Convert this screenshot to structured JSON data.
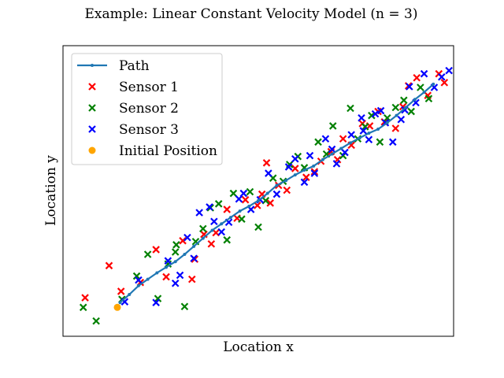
{
  "chart_data": {
    "type": "scatter",
    "title": "Example: Linear Constant Velocity Model (n = 3)",
    "xlabel": "Location x",
    "ylabel": "Location y",
    "xticks": [],
    "yticks": [],
    "grid": false,
    "legend_position": "top-left",
    "xlim": [
      -2.2,
      40.2
    ],
    "ylim": [
      -3.6,
      32.6
    ],
    "series": [
      {
        "name": "Path",
        "kind": "line",
        "color": "#1f77b4",
        "x": [
          4.0,
          5.0,
          6.0,
          7.0,
          8.0,
          9.0,
          10.0,
          11.0,
          12.0,
          13.0,
          14.0,
          15.0,
          16.0,
          17.0,
          18.0,
          19.0,
          20.0,
          21.0,
          22.0,
          23.0,
          24.0,
          25.0,
          26.0,
          27.0,
          28.0,
          29.0,
          30.0,
          31.0,
          32.0,
          33.0,
          34.0,
          35.0,
          36.0,
          37.0,
          38.0
        ],
        "y": [
          0.6,
          1.6,
          2.7,
          3.5,
          4.3,
          5.0,
          5.7,
          6.6,
          7.6,
          8.6,
          9.6,
          10.4,
          11.2,
          12.0,
          12.6,
          13.3,
          14.2,
          15.2,
          15.8,
          16.5,
          17.1,
          17.6,
          18.4,
          19.1,
          19.8,
          20.5,
          21.1,
          21.7,
          22.2,
          23.0,
          23.9,
          24.9,
          25.9,
          26.8,
          27.8
        ]
      },
      {
        "name": "Sensor 1",
        "kind": "marker",
        "color": "#ff0000",
        "x": [
          0.2,
          2.8,
          4.1,
          6.2,
          7.9,
          9.0,
          10.8,
          12.1,
          13.1,
          13.9,
          15.6,
          16.7,
          17.6,
          18.9,
          19.4,
          20.3,
          21.2,
          22.1,
          23.0,
          24.2,
          25.1,
          25.8,
          26.9,
          27.6,
          28.2,
          29.1,
          30.3,
          31.1,
          32.0,
          32.7,
          33.9,
          34.7,
          35.3,
          36.2,
          37.4,
          38.6,
          39.2,
          11.8,
          14.4,
          19.9
        ],
        "y": [
          1.2,
          5.2,
          2.0,
          3.1,
          7.2,
          3.8,
          8.3,
          6.0,
          9.1,
          7.9,
          12.2,
          11.1,
          13.4,
          12.7,
          14.1,
          13.0,
          15.2,
          14.6,
          17.3,
          16.2,
          16.9,
          18.2,
          19.4,
          18.4,
          21.0,
          20.2,
          22.9,
          22.6,
          24.4,
          23.1,
          22.3,
          25.0,
          27.6,
          28.6,
          26.4,
          29.1,
          28.0,
          3.5,
          9.3,
          18.0
        ]
      },
      {
        "name": "Sensor 2",
        "kind": "marker",
        "color": "#008000",
        "x": [
          0.0,
          1.4,
          4.2,
          5.8,
          7.0,
          8.1,
          9.2,
          10.1,
          11.0,
          12.2,
          13.0,
          13.8,
          14.7,
          15.6,
          16.3,
          17.2,
          18.1,
          19.0,
          19.8,
          20.6,
          21.7,
          22.4,
          23.3,
          24.0,
          25.5,
          26.4,
          27.1,
          28.2,
          29.0,
          29.8,
          30.6,
          31.3,
          32.2,
          33.0,
          33.9,
          34.8,
          35.6,
          36.6,
          37.5,
          10.0
        ],
        "y": [
          0.0,
          -1.7,
          1.0,
          3.9,
          6.6,
          1.1,
          5.4,
          7.8,
          0.1,
          8.2,
          9.8,
          12.4,
          12.9,
          8.4,
          14.2,
          11.0,
          14.4,
          10.0,
          13.3,
          16.1,
          15.7,
          17.8,
          18.8,
          17.4,
          20.6,
          19.1,
          22.6,
          18.9,
          24.8,
          21.0,
          22.5,
          23.9,
          20.6,
          23.6,
          24.9,
          25.8,
          24.4,
          27.4,
          26.0,
          6.9
        ]
      },
      {
        "name": "Sensor 3",
        "kind": "marker",
        "color": "#0000ff",
        "x": [
          4.5,
          6.0,
          7.9,
          9.2,
          10.5,
          11.3,
          12.0,
          12.6,
          13.7,
          14.2,
          15.0,
          15.8,
          16.9,
          17.4,
          18.2,
          19.2,
          20.1,
          21.0,
          22.3,
          23.0,
          24.0,
          24.6,
          25.1,
          26.3,
          27.0,
          27.5,
          28.4,
          29.1,
          30.2,
          31.0,
          31.7,
          32.3,
          32.8,
          33.6,
          34.5,
          35.4,
          36.1,
          37.0,
          38.1,
          38.9,
          39.7,
          10.0,
          30.4,
          34.9
        ],
        "y": [
          0.7,
          3.4,
          0.6,
          5.8,
          4.0,
          8.7,
          6.1,
          11.8,
          12.5,
          10.7,
          9.4,
          10.6,
          13.5,
          14.2,
          12.2,
          13.4,
          16.7,
          14.1,
          17.5,
          18.5,
          15.6,
          18.9,
          16.7,
          21.0,
          19.7,
          17.9,
          19.3,
          21.5,
          23.6,
          20.9,
          24.1,
          24.5,
          23.0,
          20.6,
          23.4,
          27.5,
          25.5,
          29.1,
          27.4,
          28.7,
          29.5,
          3.0,
          22.0,
          24.6
        ]
      },
      {
        "name": "Initial Position",
        "kind": "marker",
        "color": "#ffa500",
        "x": [
          3.7
        ],
        "y": [
          0.0
        ]
      }
    ]
  }
}
